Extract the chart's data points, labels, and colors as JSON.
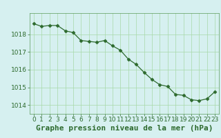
{
  "x": [
    0,
    1,
    2,
    3,
    4,
    5,
    6,
    7,
    8,
    9,
    10,
    11,
    12,
    13,
    14,
    15,
    16,
    17,
    18,
    19,
    20,
    21,
    22,
    23
  ],
  "y": [
    1018.6,
    1018.45,
    1018.5,
    1018.5,
    1018.2,
    1018.1,
    1017.65,
    1017.6,
    1017.55,
    1017.65,
    1017.35,
    1017.1,
    1016.6,
    1016.3,
    1015.85,
    1015.45,
    1015.15,
    1015.05,
    1014.6,
    1014.55,
    1014.3,
    1014.25,
    1014.35,
    1014.75
  ],
  "line_color": "#2d6a2d",
  "marker": "D",
  "marker_size": 2.5,
  "background_color": "#d6f0f0",
  "grid_color": "#a8d8a8",
  "xlabel": "Graphe pression niveau de la mer (hPa)",
  "xlabel_fontsize": 8,
  "ylim": [
    1013.5,
    1019.2
  ],
  "yticks": [
    1014,
    1015,
    1016,
    1017,
    1018
  ],
  "xticks": [
    0,
    1,
    2,
    3,
    4,
    5,
    6,
    7,
    8,
    9,
    10,
    11,
    12,
    13,
    14,
    15,
    16,
    17,
    18,
    19,
    20,
    21,
    22,
    23
  ],
  "tick_fontsize": 6.5,
  "tick_color": "#2d6a2d",
  "spine_color": "#5a9a5a"
}
